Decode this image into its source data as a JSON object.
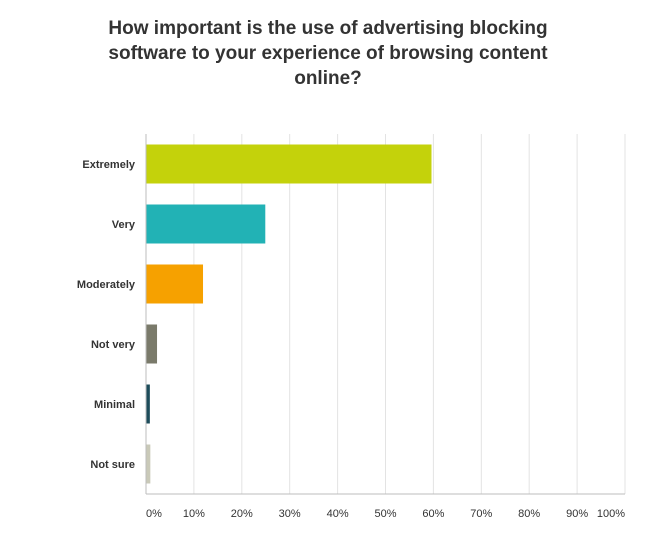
{
  "chart_data": {
    "type": "bar",
    "orientation": "horizontal",
    "title": "How important is the use of advertising blocking software to your experience of browsing content online?",
    "xlabel": "",
    "ylabel": "",
    "xlim": [
      0,
      100
    ],
    "grid": true,
    "categories": [
      "Extremely",
      "Very",
      "Moderately",
      "Not very",
      "Minimal",
      "Not sure"
    ],
    "values": [
      59.5,
      24.8,
      11.8,
      2.2,
      0.7,
      0.8
    ],
    "colors": [
      "#c4d20b",
      "#22b2b5",
      "#f6a100",
      "#7a7a6a",
      "#1d4c5a",
      "#c9c9b8"
    ],
    "ticks": [
      "0%",
      "10%",
      "20%",
      "30%",
      "40%",
      "50%",
      "60%",
      "70%",
      "80%",
      "90%",
      "100%"
    ],
    "tick_values": [
      0,
      10,
      20,
      30,
      40,
      50,
      60,
      70,
      80,
      90,
      100
    ]
  }
}
